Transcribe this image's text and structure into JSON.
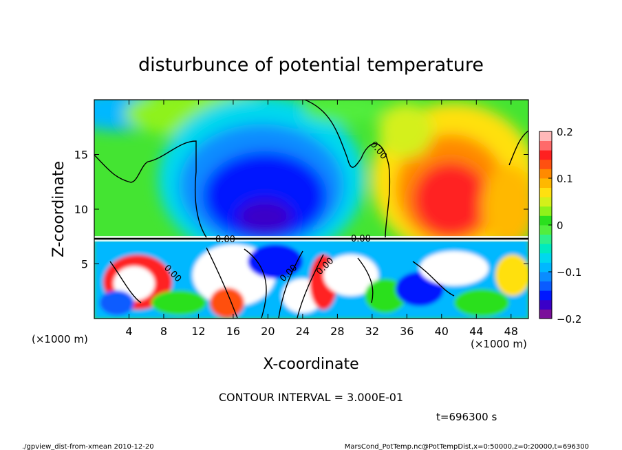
{
  "chart_data": {
    "type": "heatmap",
    "title": "disturbunce of potential temperature",
    "xlabel": "X-coordinate",
    "ylabel": "Z-coordinate",
    "x_unit_left": "(×1000 m)",
    "x_unit_right": "(×1000 m)",
    "xlim": [
      0,
      50
    ],
    "ylim": [
      0,
      20
    ],
    "x_ticks": [
      4,
      8,
      12,
      16,
      20,
      24,
      28,
      32,
      36,
      40,
      44,
      48
    ],
    "y_ticks": [
      5,
      10,
      15
    ],
    "colorbar": {
      "min": -0.2,
      "max": 0.2,
      "tick_values": [
        0.2,
        0.1,
        0,
        -0.1,
        -0.2
      ],
      "tick_labels": [
        "0.2",
        "0.1",
        "0",
        "−0.1",
        "−0.2"
      ],
      "colors": [
        "#7a0f9a",
        "#3a00c8",
        "#0018ff",
        "#0a5cff",
        "#0a8cff",
        "#00b8ff",
        "#00d8ee",
        "#00eabf",
        "#2ef08a",
        "#52ee3e",
        "#2ae01e",
        "#8ef21a",
        "#d4f01a",
        "#ffe010",
        "#ffb800",
        "#ff8a00",
        "#ff5010",
        "#ff2020",
        "#ff6a6a",
        "#ffb8b8"
      ]
    },
    "contour_labels": [
      "0.00",
      "0.00",
      "0.00",
      "0.00",
      "0.00",
      "0.00"
    ],
    "contour_interval_text": "CONTOUR INTERVAL = 3.000E-01",
    "time_text": "t=696300 s"
  },
  "footer": {
    "left": "./gpview_dist-from-xmean  2010-12-20",
    "right": "MarsCond_PotTemp.nc@PotTempDist,x=0:50000,z=0:20000,t=696300"
  }
}
